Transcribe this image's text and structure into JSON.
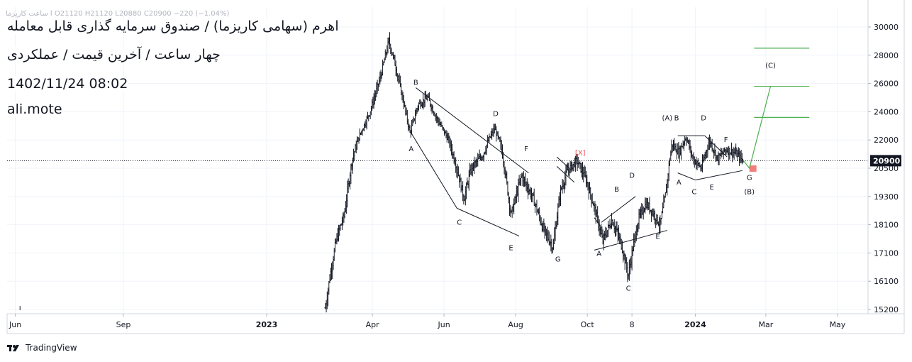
{
  "header": {
    "ohlc": "ا ساعت کاریزما  O21120  H21120  L20880  C20900  −220  (−1.04%)",
    "title": "اهرم (سهامی کاریزما) / صندوق سرمایه گذاری قابل معامله",
    "subtitle": "چهار ساعت / آخرین قیمت / عملکردی",
    "datetime": "1402/11/24 08:02",
    "author": "ali.mote"
  },
  "footer": {
    "brand": "TradingView"
  },
  "colors": {
    "candle": "#131722",
    "trendline": "#131722",
    "projection": "#4caf50",
    "target_box": "#ef5350",
    "x_label": "#ef5350",
    "price_badge": "#131722",
    "axis_text": "#131722"
  },
  "chart_data": {
    "type": "bar",
    "ylim": [
      15200,
      30500
    ],
    "last_price": 20900,
    "last_price_label": "20900",
    "y_ticks": [
      {
        "v": 30000,
        "label": "30000"
      },
      {
        "v": 28000,
        "label": "28000"
      },
      {
        "v": 26000,
        "label": "26000"
      },
      {
        "v": 24000,
        "label": "24000"
      },
      {
        "v": 22000,
        "label": "22000"
      },
      {
        "v": 20500,
        "label": "20500"
      },
      {
        "v": 19300,
        "label": "19300"
      },
      {
        "v": 18100,
        "label": "18100"
      },
      {
        "v": 17100,
        "label": "17100"
      },
      {
        "v": 16100,
        "label": "16100"
      },
      {
        "v": 15200,
        "label": "15200"
      }
    ],
    "x_ticks": [
      {
        "d": "2022-06-01",
        "label": "Jun",
        "bold": false
      },
      {
        "d": "2022-09-01",
        "label": "Sep",
        "bold": false
      },
      {
        "d": "2023-01-01",
        "label": "2023",
        "bold": true
      },
      {
        "d": "2023-04-01",
        "label": "Apr",
        "bold": false
      },
      {
        "d": "2023-06-01",
        "label": "Jun",
        "bold": false
      },
      {
        "d": "2023-08-01",
        "label": "Aug",
        "bold": false
      },
      {
        "d": "2023-10-01",
        "label": "Oct",
        "bold": false
      },
      {
        "d": "2023-11-08",
        "label": "8",
        "bold": false
      },
      {
        "d": "2024-01-01",
        "label": "2024",
        "bold": true
      },
      {
        "d": "2024-03-01",
        "label": "Mar",
        "bold": false
      },
      {
        "d": "2024-05-01",
        "label": "May",
        "bold": false
      }
    ],
    "price_path": [
      {
        "d": "2022-06-05",
        "p": 15220
      },
      {
        "d": "2023-02-20",
        "p": 15250
      },
      {
        "d": "2023-02-24",
        "p": 16300
      },
      {
        "d": "2023-03-01",
        "p": 17500
      },
      {
        "d": "2023-03-08",
        "p": 18500
      },
      {
        "d": "2023-03-15",
        "p": 21000
      },
      {
        "d": "2023-03-22",
        "p": 22500
      },
      {
        "d": "2023-03-30",
        "p": 24000
      },
      {
        "d": "2023-04-08",
        "p": 26500
      },
      {
        "d": "2023-04-15",
        "p": 29000
      },
      {
        "d": "2023-04-20",
        "p": 27500
      },
      {
        "d": "2023-04-28",
        "p": 24500
      },
      {
        "d": "2023-05-03",
        "p": 22500
      },
      {
        "d": "2023-05-10",
        "p": 24500
      },
      {
        "d": "2023-05-18",
        "p": 25000
      },
      {
        "d": "2023-05-26",
        "p": 23500
      },
      {
        "d": "2023-06-05",
        "p": 22000
      },
      {
        "d": "2023-06-12",
        "p": 20500
      },
      {
        "d": "2023-06-18",
        "p": 19200
      },
      {
        "d": "2023-06-24",
        "p": 20500
      },
      {
        "d": "2023-07-04",
        "p": 21200
      },
      {
        "d": "2023-07-14",
        "p": 22800
      },
      {
        "d": "2023-07-20",
        "p": 21500
      },
      {
        "d": "2023-07-28",
        "p": 18500
      },
      {
        "d": "2023-08-06",
        "p": 20200
      },
      {
        "d": "2023-08-16",
        "p": 19200
      },
      {
        "d": "2023-08-24",
        "p": 18000
      },
      {
        "d": "2023-09-02",
        "p": 17300
      },
      {
        "d": "2023-09-08",
        "p": 19500
      },
      {
        "d": "2023-09-14",
        "p": 20400
      },
      {
        "d": "2023-09-22",
        "p": 20900
      },
      {
        "d": "2023-09-30",
        "p": 20000
      },
      {
        "d": "2023-10-06",
        "p": 19000
      },
      {
        "d": "2023-10-14",
        "p": 17500
      },
      {
        "d": "2023-10-22",
        "p": 18300
      },
      {
        "d": "2023-10-30",
        "p": 17400
      },
      {
        "d": "2023-11-05",
        "p": 16300
      },
      {
        "d": "2023-11-08",
        "p": 17100
      },
      {
        "d": "2023-11-14",
        "p": 18400
      },
      {
        "d": "2023-11-20",
        "p": 19000
      },
      {
        "d": "2023-11-26",
        "p": 18600
      },
      {
        "d": "2023-12-02",
        "p": 18100
      },
      {
        "d": "2023-12-07",
        "p": 19500
      },
      {
        "d": "2023-12-12",
        "p": 21800
      },
      {
        "d": "2023-12-18",
        "p": 21300
      },
      {
        "d": "2023-12-24",
        "p": 22200
      },
      {
        "d": "2023-12-30",
        "p": 21000
      },
      {
        "d": "2024-01-06",
        "p": 20500
      },
      {
        "d": "2024-01-13",
        "p": 22000
      },
      {
        "d": "2024-01-20",
        "p": 21000
      },
      {
        "d": "2024-01-27",
        "p": 21500
      },
      {
        "d": "2024-02-04",
        "p": 21300
      },
      {
        "d": "2024-02-11",
        "p": 20900
      }
    ],
    "wave_labels": [
      {
        "text": "A",
        "d": "2023-05-04",
        "p": 21400,
        "color": "#131722"
      },
      {
        "text": "B",
        "d": "2023-05-08",
        "p": 25900,
        "color": "#131722"
      },
      {
        "text": "C",
        "d": "2023-06-14",
        "p": 18100,
        "color": "#131722"
      },
      {
        "text": "D",
        "d": "2023-07-15",
        "p": 23700,
        "color": "#131722"
      },
      {
        "text": "E",
        "d": "2023-07-28",
        "p": 17200,
        "color": "#131722"
      },
      {
        "text": "F",
        "d": "2023-08-10",
        "p": 21400,
        "color": "#131722"
      },
      {
        "text": "G",
        "d": "2023-09-06",
        "p": 16800,
        "color": "#131722"
      },
      {
        "text": "[X]",
        "d": "2023-09-25",
        "p": 21200,
        "color": "#ef5350"
      },
      {
        "text": "A",
        "d": "2023-10-11",
        "p": 17000,
        "color": "#131722"
      },
      {
        "text": "B",
        "d": "2023-10-26",
        "p": 19500,
        "color": "#131722"
      },
      {
        "text": "C",
        "d": "2023-11-05",
        "p": 15800,
        "color": "#131722"
      },
      {
        "text": "D",
        "d": "2023-11-08",
        "p": 20100,
        "color": "#131722"
      },
      {
        "text": "E",
        "d": "2023-11-30",
        "p": 17600,
        "color": "#131722"
      },
      {
        "text": "(A)",
        "d": "2023-12-08",
        "p": 23400,
        "color": "#131722"
      },
      {
        "text": "B",
        "d": "2023-12-16",
        "p": 23400,
        "color": "#131722"
      },
      {
        "text": "A",
        "d": "2023-12-18",
        "p": 19800,
        "color": "#131722"
      },
      {
        "text": "C",
        "d": "2023-12-31",
        "p": 19400,
        "color": "#131722"
      },
      {
        "text": "D",
        "d": "2024-01-08",
        "p": 23400,
        "color": "#131722"
      },
      {
        "text": "E",
        "d": "2024-01-15",
        "p": 19600,
        "color": "#131722"
      },
      {
        "text": "F",
        "d": "2024-01-27",
        "p": 21900,
        "color": "#131722"
      },
      {
        "text": "G",
        "d": "2024-02-16",
        "p": 20000,
        "color": "#131722"
      },
      {
        "text": "(B)",
        "d": "2024-02-16",
        "p": 19400,
        "color": "#131722"
      },
      {
        "text": "(C)",
        "d": "2024-03-05",
        "p": 27100,
        "color": "#131722"
      }
    ],
    "trend_lines": [
      {
        "d1": "2023-05-08",
        "p1": 25700,
        "d2": "2023-08-12",
        "p2": 20300
      },
      {
        "d1": "2023-05-04",
        "p1": 22500,
        "d2": "2023-06-12",
        "p2": 18800
      },
      {
        "d1": "2023-06-12",
        "p1": 18800,
        "d2": "2023-08-04",
        "p2": 17700
      },
      {
        "d1": "2023-09-05",
        "p1": 21100,
        "d2": "2023-09-18",
        "p2": 20400
      },
      {
        "d1": "2023-09-05",
        "p1": 20600,
        "d2": "2023-09-20",
        "p2": 19900
      },
      {
        "d1": "2023-10-07",
        "p1": 18400,
        "d2": "2023-10-13",
        "p2": 18000
      },
      {
        "d1": "2023-10-07",
        "p1": 17200,
        "d2": "2023-12-08",
        "p2": 17900
      },
      {
        "d1": "2023-10-13",
        "p1": 18200,
        "d2": "2023-11-11",
        "p2": 19300
      },
      {
        "d1": "2023-12-17",
        "p1": 22300,
        "d2": "2024-01-09",
        "p2": 22300
      },
      {
        "d1": "2024-01-09",
        "p1": 22300,
        "d2": "2024-01-28",
        "p2": 21100
      },
      {
        "d1": "2023-12-17",
        "p1": 20300,
        "d2": "2024-01-01",
        "p2": 20000
      },
      {
        "d1": "2024-01-01",
        "p1": 20000,
        "d2": "2024-02-10",
        "p2": 20400
      }
    ],
    "projection": {
      "levels": [
        {
          "d1": "2024-02-20",
          "d2": "2024-04-07",
          "p": 28500
        },
        {
          "d1": "2024-02-20",
          "d2": "2024-04-07",
          "p": 25800
        },
        {
          "d1": "2024-02-20",
          "d2": "2024-04-07",
          "p": 23600
        }
      ],
      "path": [
        {
          "d": "2024-02-11",
          "p": 20900
        },
        {
          "d": "2024-02-16",
          "p": 20500
        },
        {
          "d": "2024-03-05",
          "p": 25800
        }
      ],
      "target_box": {
        "d1": "2024-02-16",
        "d2": "2024-02-22",
        "p1": 20350,
        "p2": 20650
      }
    }
  }
}
